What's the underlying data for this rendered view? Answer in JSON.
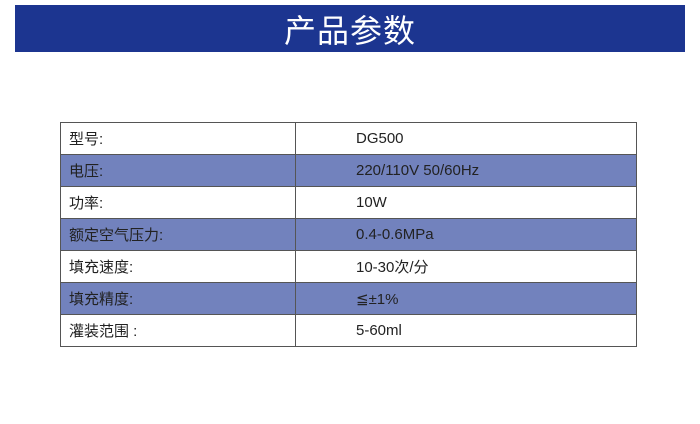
{
  "title": "产品参数",
  "colors": {
    "banner": "#1c3590",
    "highlight_row": "#7282bd"
  },
  "rows": [
    {
      "label": "型号:",
      "value": "DG500",
      "highlighted": false
    },
    {
      "label": "电压:",
      "value": "220/110V 50/60Hz",
      "highlighted": true
    },
    {
      "label": "功率:",
      "value": "10W",
      "highlighted": false
    },
    {
      "label": "额定空气压力:",
      "value": "0.4-0.6MPa",
      "highlighted": true
    },
    {
      "label": "填充速度:",
      "value": "10-30次/分",
      "highlighted": false
    },
    {
      "label": "填充精度:",
      "value": "≦±1%",
      "highlighted": true
    },
    {
      "label": "灌装范围 :",
      "value": "5-60ml",
      "highlighted": false
    }
  ]
}
